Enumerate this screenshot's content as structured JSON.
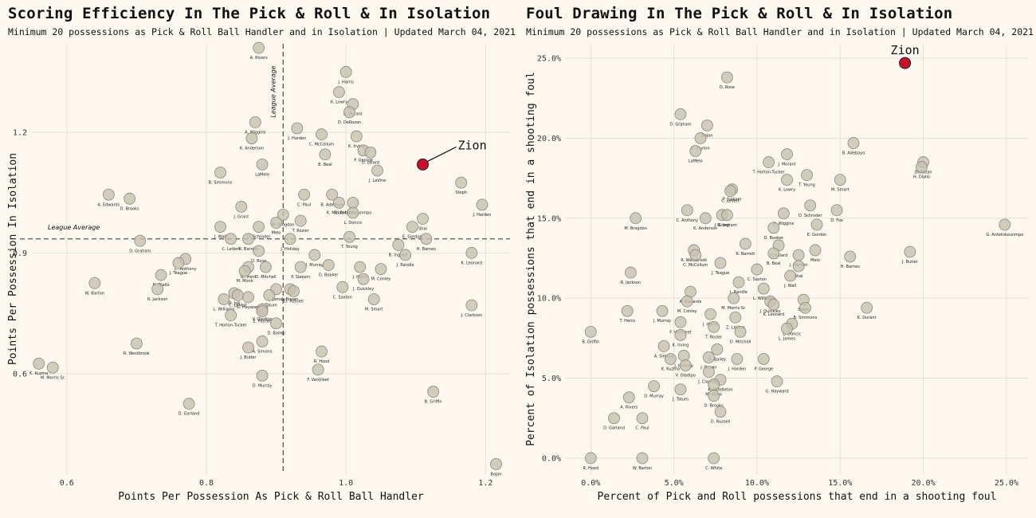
{
  "chart_data": [
    {
      "type": "scatter",
      "title": "Scoring Efficiency In The Pick & Roll & In Isolation",
      "subtitle": "Minimum 20 possessions as Pick & Roll Ball Handler and in Isolation | Updated March 04, 2021",
      "xlabel": "Points Per Possession As Pick & Roll Ball Handler",
      "ylabel": "Points Per Possession In Isolation",
      "xlim": [
        0.55,
        1.235
      ],
      "ylim": [
        0.35,
        1.42
      ],
      "xticks": [
        0.6,
        0.8,
        1.0,
        1.2
      ],
      "xticklabels": [
        "0.6",
        "0.8",
        "1.0",
        "1.2"
      ],
      "yticks": [
        0.6,
        0.9,
        1.2
      ],
      "yticklabels": [
        "0.6",
        "0.9",
        "1.2"
      ],
      "grid": true,
      "ref_x": 0.91,
      "ref_y": 0.935,
      "ref_x_label": "League Average",
      "ref_y_label": "League Average",
      "marker_color": "#c8bfb0",
      "highlight_color": "#c8102e",
      "highlight": {
        "label": "Zion",
        "x": 1.11,
        "y": 1.12
      },
      "points": [
        {
          "label": "A. Rivers",
          "x": 0.875,
          "y": 1.41
        },
        {
          "label": "J. Harris",
          "x": 1.0,
          "y": 1.35
        },
        {
          "label": "K. Lowry",
          "x": 0.99,
          "y": 1.3
        },
        {
          "label": "K. Durant",
          "x": 1.01,
          "y": 1.27
        },
        {
          "label": "A. Wiggins",
          "x": 0.87,
          "y": 1.225
        },
        {
          "label": "J. Harden",
          "x": 0.93,
          "y": 1.21
        },
        {
          "label": "D. DeRozan",
          "x": 1.005,
          "y": 1.25
        },
        {
          "label": "K. Irving",
          "x": 1.015,
          "y": 1.19
        },
        {
          "label": "K. Anderson",
          "x": 0.865,
          "y": 1.185
        },
        {
          "label": "C. McCollum",
          "x": 0.965,
          "y": 1.195
        },
        {
          "label": "P. George",
          "x": 1.025,
          "y": 1.155
        },
        {
          "label": "D. Lillard",
          "x": 1.035,
          "y": 1.15
        },
        {
          "label": "J. LaVine",
          "x": 1.045,
          "y": 1.105
        },
        {
          "label": "B. Beal",
          "x": 0.97,
          "y": 1.145
        },
        {
          "label": "LaMelo",
          "x": 0.88,
          "y": 1.12
        },
        {
          "label": "B. Simmons",
          "x": 0.82,
          "y": 1.1
        },
        {
          "label": "C. Paul",
          "x": 0.94,
          "y": 1.045
        },
        {
          "label": "B. Adebayo",
          "x": 0.98,
          "y": 1.045
        },
        {
          "label": "Steph",
          "x": 1.165,
          "y": 1.075
        },
        {
          "label": "J. Harden",
          "x": 1.195,
          "y": 1.02
        },
        {
          "label": "G. Antetokounmpo",
          "x": 1.01,
          "y": 1.025
        },
        {
          "label": "K. Middleton",
          "x": 0.99,
          "y": 1.025
        },
        {
          "label": "A. Edwards",
          "x": 0.66,
          "y": 1.045
        },
        {
          "label": "D. Brooks",
          "x": 0.69,
          "y": 1.035
        },
        {
          "label": "J. Grant",
          "x": 0.85,
          "y": 1.015
        },
        {
          "label": "M. Brogdon",
          "x": 0.91,
          "y": 0.995
        },
        {
          "label": "D. Schroder",
          "x": 0.875,
          "y": 0.965
        },
        {
          "label": "T. Rozier",
          "x": 0.935,
          "y": 0.98
        },
        {
          "label": "J. Wall",
          "x": 0.82,
          "y": 0.965
        },
        {
          "label": "Melo",
          "x": 0.9,
          "y": 0.975
        },
        {
          "label": "L. Doncic",
          "x": 1.01,
          "y": 1.0
        },
        {
          "label": "Shai",
          "x": 1.11,
          "y": 0.985
        },
        {
          "label": "E. Gordon",
          "x": 1.095,
          "y": 0.965
        },
        {
          "label": "T. Young",
          "x": 1.005,
          "y": 0.94
        },
        {
          "label": "D. Graham",
          "x": 0.705,
          "y": 0.93
        },
        {
          "label": "C. LeVert",
          "x": 0.835,
          "y": 0.935
        },
        {
          "label": "R. Barrett",
          "x": 0.86,
          "y": 0.935
        },
        {
          "label": "J. Holiday",
          "x": 0.92,
          "y": 0.935
        },
        {
          "label": "B. Ingram",
          "x": 1.075,
          "y": 0.92
        },
        {
          "label": "H. Barnes",
          "x": 1.115,
          "y": 0.935
        },
        {
          "label": "D. Rose",
          "x": 0.875,
          "y": 0.905
        },
        {
          "label": "K. Leonard",
          "x": 1.18,
          "y": 0.9
        },
        {
          "label": "C. Anthony",
          "x": 0.77,
          "y": 0.885
        },
        {
          "label": "D. Mitchell",
          "x": 0.885,
          "y": 0.865
        },
        {
          "label": "J. Murray",
          "x": 0.955,
          "y": 0.895
        },
        {
          "label": "P. Siakam",
          "x": 0.935,
          "y": 0.865
        },
        {
          "label": "J. Randle",
          "x": 1.085,
          "y": 0.895
        },
        {
          "label": "J. Teague",
          "x": 0.76,
          "y": 0.875
        },
        {
          "label": "G. Trent",
          "x": 0.86,
          "y": 0.865
        },
        {
          "label": "M. Monk",
          "x": 0.855,
          "y": 0.855
        },
        {
          "label": "D. Booker",
          "x": 0.975,
          "y": 0.87
        },
        {
          "label": "J. Herro",
          "x": 1.02,
          "y": 0.865
        },
        {
          "label": "M. Conley",
          "x": 1.05,
          "y": 0.86
        },
        {
          "label": "H. Diallo",
          "x": 0.735,
          "y": 0.845
        },
        {
          "label": "L. James",
          "x": 0.9,
          "y": 0.81
        },
        {
          "label": "J. Quickley",
          "x": 1.025,
          "y": 0.835
        },
        {
          "label": "W. Barton",
          "x": 0.64,
          "y": 0.825
        },
        {
          "label": "R. Jackson",
          "x": 0.73,
          "y": 0.81
        },
        {
          "label": "J. Brown",
          "x": 0.92,
          "y": 0.81
        },
        {
          "label": "C. Saxton",
          "x": 0.995,
          "y": 0.815
        },
        {
          "label": "D. Jok",
          "x": 0.84,
          "y": 0.8
        },
        {
          "label": "C. LeVert",
          "x": 0.845,
          "y": 0.795
        },
        {
          "label": "J. Tatum",
          "x": 0.89,
          "y": 0.795
        },
        {
          "label": "D. Russell",
          "x": 0.925,
          "y": 0.805
        },
        {
          "label": "M. Smart",
          "x": 1.04,
          "y": 0.785
        },
        {
          "label": "L. Williams",
          "x": 0.825,
          "y": 0.785
        },
        {
          "label": "G. Hayward",
          "x": 0.86,
          "y": 0.79
        },
        {
          "label": "V. Oladipo",
          "x": 0.88,
          "y": 0.76
        },
        {
          "label": "J. Clarkson",
          "x": 1.18,
          "y": 0.77
        },
        {
          "label": "T. Horton-Tucker",
          "x": 0.835,
          "y": 0.745
        },
        {
          "label": "E. Payton",
          "x": 0.88,
          "y": 0.755
        },
        {
          "label": "D. Bailey",
          "x": 0.9,
          "y": 0.725
        },
        {
          "label": "A. Simons",
          "x": 0.88,
          "y": 0.68
        },
        {
          "label": "R. Westbrook",
          "x": 0.7,
          "y": 0.675
        },
        {
          "label": "J. Butler",
          "x": 0.86,
          "y": 0.665
        },
        {
          "label": "R. Hood",
          "x": 0.965,
          "y": 0.655
        },
        {
          "label": "K. Kuzma",
          "x": 0.56,
          "y": 0.625
        },
        {
          "label": "M. Morris Sr.",
          "x": 0.58,
          "y": 0.615
        },
        {
          "label": "D. Murray",
          "x": 0.88,
          "y": 0.595
        },
        {
          "label": "F. VanVleet",
          "x": 0.96,
          "y": 0.61
        },
        {
          "label": "B. Griffin",
          "x": 1.125,
          "y": 0.555
        },
        {
          "label": "D. Garland",
          "x": 0.775,
          "y": 0.525
        },
        {
          "label": "Bojan",
          "x": 1.215,
          "y": 0.375
        }
      ]
    },
    {
      "type": "scatter",
      "title": "Foul Drawing In The Pick & Roll & In Isolation",
      "subtitle": "Minimum 20 possessions as Pick & Roll Ball Handler and in Isolation | Updated March 04, 2021",
      "xlabel": "Percent of Pick and Roll possessions that end in a shooting foul",
      "ylabel": "Percent of Isolation possessions that end in a shooting foul",
      "xlim": [
        -1.5,
        26.3
      ],
      "ylim": [
        -1.0,
        25.9
      ],
      "xticks": [
        0,
        5,
        10,
        15,
        20,
        25
      ],
      "xticklabels": [
        "0.0%",
        "5.0%",
        "10.0%",
        "15.0%",
        "20.0%",
        "25.0%"
      ],
      "yticks": [
        0,
        5,
        10,
        15,
        20,
        25
      ],
      "yticklabels": [
        "0.0%",
        "5.0%",
        "10.0%",
        "15.0%",
        "20.0%",
        "25.0%"
      ],
      "grid": true,
      "marker_color": "#c8bfb0",
      "highlight_color": "#c8102e",
      "highlight": {
        "label": "Zion",
        "x": 18.9,
        "y": 24.7
      },
      "points": [
        {
          "label": "D. Rose",
          "x": 8.2,
          "y": 23.8
        },
        {
          "label": "D. Graham",
          "x": 5.4,
          "y": 21.5
        },
        {
          "label": "Bojan",
          "x": 7.0,
          "y": 20.8
        },
        {
          "label": "E. Payton",
          "x": 6.6,
          "y": 20.0
        },
        {
          "label": "LaMelo",
          "x": 6.3,
          "y": 19.2
        },
        {
          "label": "B. Adebayo",
          "x": 15.8,
          "y": 19.7
        },
        {
          "label": "J. Morant",
          "x": 11.8,
          "y": 19.0
        },
        {
          "label": "DeRozan",
          "x": 20.0,
          "y": 18.5
        },
        {
          "label": "H. Diallo",
          "x": 19.9,
          "y": 18.2
        },
        {
          "label": "T. Horton-Tucker",
          "x": 10.7,
          "y": 18.5
        },
        {
          "label": "T. Young",
          "x": 13.0,
          "y": 17.7
        },
        {
          "label": "M. Smart",
          "x": 15.0,
          "y": 17.4
        },
        {
          "label": "K. Lowry",
          "x": 11.8,
          "y": 17.4
        },
        {
          "label": "P. Siakam",
          "x": 8.5,
          "y": 16.8
        },
        {
          "label": "C. LeVert",
          "x": 8.4,
          "y": 16.7
        },
        {
          "label": "D. Schroder",
          "x": 13.2,
          "y": 15.8
        },
        {
          "label": "C. Anthony",
          "x": 5.8,
          "y": 15.5
        },
        {
          "label": "D. Fox",
          "x": 14.8,
          "y": 15.5
        },
        {
          "label": "A. Wiggins",
          "x": 11.6,
          "y": 15.3
        },
        {
          "label": "J. Grant",
          "x": 7.9,
          "y": 15.2
        },
        {
          "label": "K. Anderson",
          "x": 6.9,
          "y": 15.0
        },
        {
          "label": "B. Ingram",
          "x": 8.2,
          "y": 15.2
        },
        {
          "label": "M. Brogdon",
          "x": 2.7,
          "y": 15.0
        },
        {
          "label": "D. Booker",
          "x": 11.0,
          "y": 14.4
        },
        {
          "label": "E. Gordon",
          "x": 13.6,
          "y": 14.6
        },
        {
          "label": "G. Antetokounmpo",
          "x": 24.9,
          "y": 14.6
        },
        {
          "label": "D. Lillard",
          "x": 11.3,
          "y": 13.3
        },
        {
          "label": "R. Westbrook",
          "x": 6.2,
          "y": 13.0
        },
        {
          "label": "R. Barrett",
          "x": 9.3,
          "y": 13.4
        },
        {
          "label": "B. Beal",
          "x": 11.0,
          "y": 12.8
        },
        {
          "label": "J. Harden",
          "x": 12.5,
          "y": 12.7
        },
        {
          "label": "Melo",
          "x": 13.5,
          "y": 13.0
        },
        {
          "label": "H. Barnes",
          "x": 15.6,
          "y": 12.6
        },
        {
          "label": "J. Butler",
          "x": 19.2,
          "y": 12.9
        },
        {
          "label": "C. McCollum",
          "x": 6.3,
          "y": 12.7
        },
        {
          "label": "Shai",
          "x": 12.5,
          "y": 12.0
        },
        {
          "label": "J. Teague",
          "x": 7.8,
          "y": 12.2
        },
        {
          "label": "C. Saxton",
          "x": 10.0,
          "y": 11.8
        },
        {
          "label": "J. Wall",
          "x": 12.0,
          "y": 11.4
        },
        {
          "label": "R. Jackson",
          "x": 2.4,
          "y": 11.6
        },
        {
          "label": "J. Randle",
          "x": 8.9,
          "y": 11.0
        },
        {
          "label": "L. Williams",
          "x": 10.4,
          "y": 10.6
        },
        {
          "label": "A. Edwards",
          "x": 6.0,
          "y": 10.4
        },
        {
          "label": "M. Conley",
          "x": 5.8,
          "y": 9.8
        },
        {
          "label": "M. Morris Sr.",
          "x": 8.6,
          "y": 10.0
        },
        {
          "label": "J. Quickley",
          "x": 10.8,
          "y": 9.8
        },
        {
          "label": "Steph",
          "x": 12.8,
          "y": 9.9
        },
        {
          "label": "B. Simmons",
          "x": 12.9,
          "y": 9.4
        },
        {
          "label": "K. Leonard",
          "x": 11.0,
          "y": 9.6
        },
        {
          "label": "J. Murray",
          "x": 4.3,
          "y": 9.2
        },
        {
          "label": "T. Herro",
          "x": 2.2,
          "y": 9.2
        },
        {
          "label": "J. Harris",
          "x": 7.2,
          "y": 9.0
        },
        {
          "label": "K. Durant",
          "x": 16.6,
          "y": 9.4
        },
        {
          "label": "F. VanVleet",
          "x": 5.4,
          "y": 8.5
        },
        {
          "label": "Z. LaVine",
          "x": 8.7,
          "y": 8.8
        },
        {
          "label": "L. Doncic",
          "x": 12.1,
          "y": 8.4
        },
        {
          "label": "L. James",
          "x": 11.8,
          "y": 8.1
        },
        {
          "label": "T. Rozier",
          "x": 7.4,
          "y": 8.2
        },
        {
          "label": "D. Mitchell",
          "x": 9.0,
          "y": 7.9
        },
        {
          "label": "B. Griffin",
          "x": 0.0,
          "y": 7.9
        },
        {
          "label": "K. Irving",
          "x": 5.4,
          "y": 7.7
        },
        {
          "label": "A. Simons",
          "x": 4.4,
          "y": 7.0
        },
        {
          "label": "D. Bailey",
          "x": 7.6,
          "y": 6.8
        },
        {
          "label": "K. Kuzma",
          "x": 4.8,
          "y": 6.2
        },
        {
          "label": "J. Holiday",
          "x": 5.6,
          "y": 6.4
        },
        {
          "label": "J. Brown",
          "x": 7.1,
          "y": 6.3
        },
        {
          "label": "P. George",
          "x": 10.4,
          "y": 6.2
        },
        {
          "label": "J. Harden",
          "x": 8.8,
          "y": 6.2
        },
        {
          "label": "V. Oladipo",
          "x": 5.7,
          "y": 5.8
        },
        {
          "label": "J. Clarkson",
          "x": 7.1,
          "y": 5.4
        },
        {
          "label": "K. Middleton",
          "x": 7.8,
          "y": 4.9
        },
        {
          "label": "G. Hayward",
          "x": 11.2,
          "y": 4.8
        },
        {
          "label": "D. Murray",
          "x": 3.8,
          "y": 4.5
        },
        {
          "label": "J. Tatum",
          "x": 5.4,
          "y": 4.3
        },
        {
          "label": "M. Monk",
          "x": 7.4,
          "y": 4.6
        },
        {
          "label": "D. Brooks",
          "x": 7.4,
          "y": 3.9
        },
        {
          "label": "A. Rivers",
          "x": 2.3,
          "y": 3.8
        },
        {
          "label": "D. Russell",
          "x": 7.8,
          "y": 2.9
        },
        {
          "label": "D. Garland",
          "x": 1.4,
          "y": 2.5
        },
        {
          "label": "C. Paul",
          "x": 3.1,
          "y": 2.5
        },
        {
          "label": "W. Barton",
          "x": 3.1,
          "y": 0.0
        },
        {
          "label": "R. Hood",
          "x": 0.0,
          "y": 0.0
        },
        {
          "label": "C. White",
          "x": 7.4,
          "y": 0.0
        }
      ]
    }
  ]
}
